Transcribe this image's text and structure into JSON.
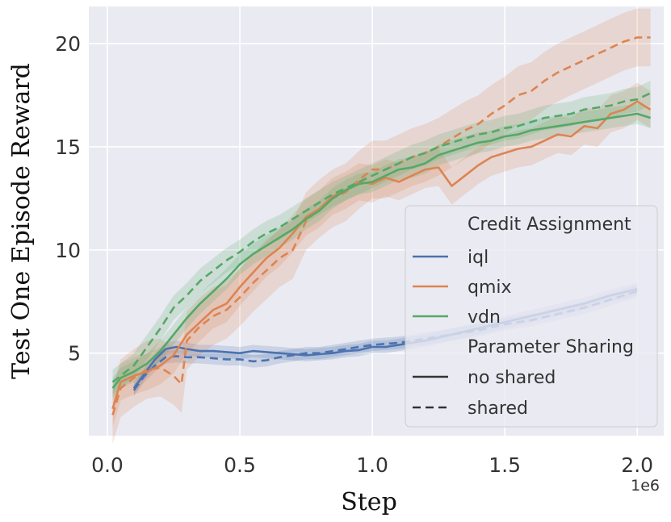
{
  "chart_data": {
    "type": "line",
    "xlabel": "Step",
    "ylabel": "Test One Episode Reward",
    "x_offset_label": "1e6",
    "xlim": [
      -0.07,
      2.1
    ],
    "ylim": [
      1.0,
      21.8
    ],
    "xticks": [
      0.0,
      0.5,
      1.0,
      1.5,
      2.0
    ],
    "xtick_labels": [
      "0.0",
      "0.5",
      "1.0",
      "1.5",
      "2.0"
    ],
    "yticks": [
      5,
      10,
      15,
      20
    ],
    "ytick_labels": [
      "5",
      "10",
      "15",
      "20"
    ],
    "grid": true,
    "legend": {
      "position": "lower-right",
      "group1_title": "Credit Assignment",
      "group2_title": "Parameter Sharing",
      "style_entries": [
        {
          "label": "no shared",
          "dash": "solid"
        },
        {
          "label": "shared",
          "dash": "dashed"
        }
      ]
    },
    "colors": {
      "iql": "#4c72b0",
      "qmix": "#dd8452",
      "vdn": "#55a868"
    },
    "series": [
      {
        "name": "iql",
        "sharing": "no shared",
        "color": "#4c72b0",
        "dash": "solid",
        "band": 0.3,
        "x": [
          0.1,
          0.14,
          0.18,
          0.22,
          0.26,
          0.3,
          0.35,
          0.4,
          0.45,
          0.5,
          0.55,
          0.6,
          0.65,
          0.7,
          0.75,
          0.8,
          0.85,
          0.9,
          0.95,
          1.0,
          1.05,
          1.1,
          1.15,
          1.2,
          1.3,
          1.4,
          1.5,
          1.6,
          1.7,
          1.8,
          1.9,
          2.0
        ],
        "y": [
          3.3,
          4.0,
          4.7,
          5.2,
          5.3,
          5.2,
          5.1,
          5.1,
          5.05,
          5.0,
          5.1,
          5.05,
          5.0,
          4.95,
          4.9,
          4.95,
          5.0,
          5.1,
          5.15,
          5.3,
          5.3,
          5.4,
          5.5,
          5.6,
          5.9,
          6.2,
          6.5,
          6.8,
          7.1,
          7.4,
          7.8,
          8.1
        ]
      },
      {
        "name": "iql",
        "sharing": "shared",
        "color": "#4c72b0",
        "dash": "dashed",
        "band": 0.3,
        "x": [
          0.1,
          0.14,
          0.18,
          0.22,
          0.26,
          0.3,
          0.35,
          0.4,
          0.45,
          0.5,
          0.55,
          0.6,
          0.65,
          0.7,
          0.75,
          0.8,
          0.85,
          0.9,
          0.95,
          1.0,
          1.05,
          1.1,
          1.15,
          1.2,
          1.3,
          1.4,
          1.5,
          1.6,
          1.7,
          1.8,
          1.9,
          2.0
        ],
        "y": [
          3.2,
          3.9,
          4.4,
          4.8,
          4.85,
          4.8,
          4.8,
          4.75,
          4.7,
          4.7,
          4.6,
          4.65,
          4.8,
          4.9,
          5.0,
          5.0,
          5.1,
          5.2,
          5.3,
          5.4,
          5.45,
          5.5,
          5.6,
          5.7,
          5.9,
          6.1,
          6.4,
          6.6,
          6.9,
          7.2,
          7.6,
          8.0
        ]
      },
      {
        "name": "qmix",
        "sharing": "no shared",
        "color": "#dd8452",
        "dash": "solid",
        "band": 0.9,
        "x": [
          0.02,
          0.05,
          0.1,
          0.15,
          0.2,
          0.25,
          0.3,
          0.35,
          0.4,
          0.45,
          0.5,
          0.55,
          0.6,
          0.65,
          0.7,
          0.75,
          0.8,
          0.85,
          0.9,
          0.95,
          1.0,
          1.05,
          1.1,
          1.15,
          1.2,
          1.25,
          1.3,
          1.35,
          1.4,
          1.45,
          1.5,
          1.55,
          1.6,
          1.65,
          1.7,
          1.75,
          1.8,
          1.85,
          1.9,
          1.95,
          2.0,
          2.05
        ],
        "y": [
          2.3,
          3.6,
          3.9,
          4.1,
          4.4,
          4.9,
          5.9,
          6.5,
          7.1,
          7.4,
          8.2,
          8.9,
          9.6,
          10.1,
          10.8,
          11.6,
          12.0,
          12.6,
          12.9,
          13.3,
          13.2,
          13.5,
          13.3,
          13.6,
          13.9,
          14.0,
          13.1,
          13.6,
          14.1,
          14.5,
          14.7,
          14.9,
          15.0,
          15.3,
          15.6,
          15.5,
          16.0,
          15.9,
          16.6,
          16.8,
          17.2,
          16.8
        ]
      },
      {
        "name": "qmix",
        "sharing": "shared",
        "color": "#dd8452",
        "dash": "dashed",
        "band": 1.4,
        "x": [
          0.02,
          0.05,
          0.1,
          0.15,
          0.2,
          0.25,
          0.28,
          0.3,
          0.35,
          0.4,
          0.45,
          0.5,
          0.55,
          0.6,
          0.65,
          0.7,
          0.75,
          0.8,
          0.85,
          0.9,
          0.95,
          1.0,
          1.05,
          1.1,
          1.15,
          1.2,
          1.25,
          1.3,
          1.35,
          1.4,
          1.45,
          1.5,
          1.55,
          1.6,
          1.65,
          1.7,
          1.75,
          1.8,
          1.85,
          1.9,
          1.95,
          2.0,
          2.05
        ],
        "y": [
          2.0,
          3.3,
          3.8,
          4.2,
          4.3,
          3.9,
          3.5,
          5.6,
          6.3,
          6.8,
          7.1,
          7.7,
          8.4,
          9.0,
          9.6,
          10.0,
          11.4,
          12.0,
          12.5,
          12.8,
          13.4,
          13.9,
          13.9,
          14.2,
          14.5,
          14.7,
          15.0,
          15.4,
          15.8,
          16.1,
          16.6,
          17.0,
          17.5,
          17.7,
          18.2,
          18.6,
          18.9,
          19.2,
          19.5,
          19.8,
          20.1,
          20.3,
          20.3
        ]
      },
      {
        "name": "vdn",
        "sharing": "no shared",
        "color": "#55a868",
        "dash": "solid",
        "band": 0.5,
        "x": [
          0.02,
          0.05,
          0.1,
          0.15,
          0.2,
          0.25,
          0.3,
          0.35,
          0.4,
          0.45,
          0.5,
          0.55,
          0.6,
          0.65,
          0.7,
          0.75,
          0.8,
          0.85,
          0.9,
          0.95,
          1.0,
          1.05,
          1.1,
          1.15,
          1.2,
          1.25,
          1.3,
          1.35,
          1.4,
          1.45,
          1.5,
          1.55,
          1.6,
          1.65,
          1.7,
          1.75,
          1.8,
          1.85,
          1.9,
          1.95,
          2.0,
          2.05
        ],
        "y": [
          3.3,
          3.8,
          4.1,
          4.5,
          5.1,
          5.9,
          6.7,
          7.4,
          8.0,
          8.6,
          9.3,
          9.8,
          10.2,
          10.6,
          11.0,
          11.5,
          11.9,
          12.5,
          12.9,
          13.2,
          13.3,
          13.6,
          13.9,
          14.0,
          14.2,
          14.6,
          14.8,
          15.0,
          15.2,
          15.3,
          15.5,
          15.6,
          15.8,
          15.9,
          16.0,
          16.1,
          16.2,
          16.3,
          16.4,
          16.5,
          16.6,
          16.4
        ]
      },
      {
        "name": "vdn",
        "sharing": "shared",
        "color": "#55a868",
        "dash": "dashed",
        "band": 0.6,
        "x": [
          0.02,
          0.05,
          0.1,
          0.15,
          0.2,
          0.25,
          0.3,
          0.35,
          0.4,
          0.45,
          0.5,
          0.55,
          0.6,
          0.65,
          0.7,
          0.75,
          0.8,
          0.85,
          0.9,
          0.95,
          1.0,
          1.05,
          1.1,
          1.15,
          1.2,
          1.25,
          1.3,
          1.35,
          1.4,
          1.45,
          1.5,
          1.55,
          1.6,
          1.65,
          1.7,
          1.75,
          1.8,
          1.85,
          1.9,
          1.95,
          2.0,
          2.05
        ],
        "y": [
          3.6,
          3.9,
          4.4,
          5.3,
          6.2,
          7.2,
          7.8,
          8.5,
          9.0,
          9.5,
          9.9,
          10.4,
          10.8,
          11.1,
          11.5,
          11.9,
          12.3,
          12.7,
          13.0,
          13.3,
          13.6,
          13.9,
          14.2,
          14.5,
          14.7,
          15.0,
          15.2,
          15.4,
          15.6,
          15.7,
          15.9,
          16.0,
          16.2,
          16.4,
          16.5,
          16.6,
          16.8,
          16.9,
          17.0,
          17.2,
          17.3,
          17.6
        ]
      }
    ]
  }
}
